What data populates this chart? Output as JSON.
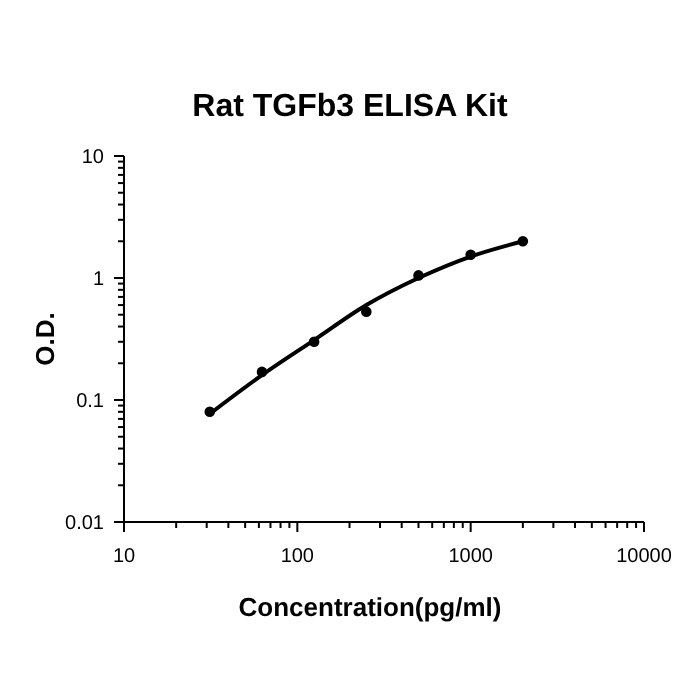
{
  "chart_data": {
    "type": "scatter",
    "title": "Rat TGFb3 ELISA Kit",
    "xlabel": "Concentration(pg/ml)",
    "ylabel": "O.D.",
    "log": "xy",
    "grid": false,
    "marker": "circle",
    "xlim": [
      10,
      10000
    ],
    "ylim": [
      0.01,
      10
    ],
    "xticks": [
      10,
      {
        "value": 20,
        "label": null
      },
      {
        "value": 30,
        "label": null
      },
      {
        "value": 40,
        "label": null
      },
      {
        "value": 50,
        "label": null
      },
      {
        "value": 60,
        "label": null
      },
      {
        "value": 70,
        "label": null
      },
      {
        "value": 80,
        "label": null
      },
      {
        "value": 90,
        "label": null
      },
      100,
      {
        "value": 200,
        "label": null
      },
      {
        "value": 300,
        "label": null
      },
      {
        "value": 400,
        "label": null
      },
      {
        "value": 500,
        "label": null
      },
      {
        "value": 600,
        "label": null
      },
      {
        "value": 700,
        "label": null
      },
      {
        "value": 800,
        "label": null
      },
      {
        "value": 900,
        "label": null
      },
      1000,
      {
        "value": 2000,
        "label": null
      },
      {
        "value": 3000,
        "label": null
      },
      {
        "value": 4000,
        "label": null
      },
      {
        "value": 5000,
        "label": null
      },
      {
        "value": 6000,
        "label": null
      },
      {
        "value": 7000,
        "label": null
      },
      {
        "value": 8000,
        "label": null
      },
      {
        "value": 9000,
        "label": null
      },
      10000
    ],
    "yticks": [
      0.01,
      {
        "value": 0.02,
        "label": null
      },
      {
        "value": 0.03,
        "label": null
      },
      {
        "value": 0.04,
        "label": null
      },
      {
        "value": 0.05,
        "label": null
      },
      {
        "value": 0.06,
        "label": null
      },
      {
        "value": 0.07,
        "label": null
      },
      {
        "value": 0.08,
        "label": null
      },
      {
        "value": 0.09,
        "label": null
      },
      0.1,
      {
        "value": 0.2,
        "label": null
      },
      {
        "value": 0.3,
        "label": null
      },
      {
        "value": 0.4,
        "label": null
      },
      {
        "value": 0.5,
        "label": null
      },
      {
        "value": 0.6,
        "label": null
      },
      {
        "value": 0.7,
        "label": null
      },
      {
        "value": 0.8,
        "label": null
      },
      {
        "value": 0.9,
        "label": null
      },
      1,
      {
        "value": 2,
        "label": null
      },
      {
        "value": 3,
        "label": null
      },
      {
        "value": 4,
        "label": null
      },
      {
        "value": 5,
        "label": null
      },
      {
        "value": 6,
        "label": null
      },
      {
        "value": 7,
        "label": null
      },
      {
        "value": 8,
        "label": null
      },
      {
        "value": 9,
        "label": null
      },
      10
    ],
    "series": [
      {
        "color": "#000000",
        "x": [
          31.25,
          62.5,
          125,
          250,
          500,
          1000,
          2000
        ],
        "values": [
          0.08,
          0.17,
          0.3,
          0.53,
          1.05,
          1.55,
          2.0
        ]
      },
      {
        "type": "line",
        "color": "#000000",
        "marker": "none",
        "line_style": "solid",
        "x": [
          31.25,
          62.5,
          125,
          250,
          500,
          1000,
          2000
        ],
        "values": [
          0.077,
          0.16,
          0.31,
          0.6,
          1.0,
          1.5,
          2.0
        ]
      }
    ]
  }
}
